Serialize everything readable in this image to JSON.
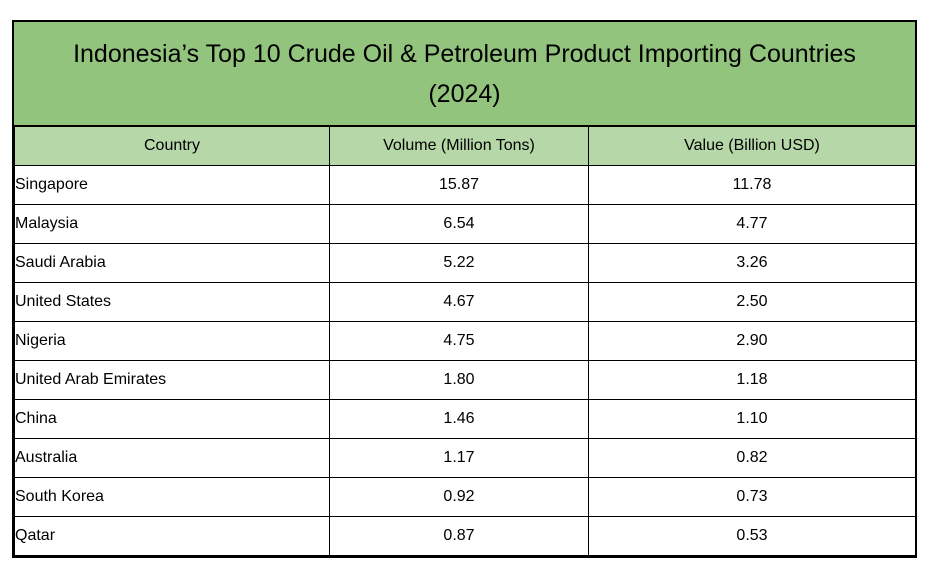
{
  "title": {
    "line1": "Indonesia’s Top 10 Crude Oil & Petroleum Product Importing Countries",
    "line2": "(2024)"
  },
  "colors": {
    "title_banner_bg": "#93C47D",
    "header_row_bg": "#B6D7A8",
    "border": "#000000",
    "text": "#000000",
    "page_bg": "#FFFFFF"
  },
  "table": {
    "headers": {
      "country": "Country",
      "volume": "Volume (Million Tons)",
      "value": "Value (Billion USD)"
    },
    "rows": [
      {
        "country": "Singapore",
        "volume": "15.87",
        "value": "11.78"
      },
      {
        "country": "Malaysia",
        "volume": "6.54",
        "value": "4.77"
      },
      {
        "country": "Saudi Arabia",
        "volume": "5.22",
        "value": "3.26"
      },
      {
        "country": "United States",
        "volume": "4.67",
        "value": "2.50"
      },
      {
        "country": "Nigeria",
        "volume": "4.75",
        "value": "2.90"
      },
      {
        "country": "United Arab Emirates",
        "volume": "1.80",
        "value": "1.18"
      },
      {
        "country": "China",
        "volume": "1.46",
        "value": "1.10"
      },
      {
        "country": "Australia",
        "volume": "1.17",
        "value": "0.82"
      },
      {
        "country": "South Korea",
        "volume": "0.92",
        "value": "0.73"
      },
      {
        "country": "Qatar",
        "volume": "0.87",
        "value": "0.53"
      }
    ]
  },
  "chart_data": {
    "type": "table",
    "title": "Indonesia’s Top 10 Crude Oil & Petroleum Product Importing Countries (2024)",
    "columns": [
      "Country",
      "Volume (Million Tons)",
      "Value (Billion USD)"
    ],
    "categories": [
      "Singapore",
      "Malaysia",
      "Saudi Arabia",
      "United States",
      "Nigeria",
      "United Arab Emirates",
      "China",
      "Australia",
      "South Korea",
      "Qatar"
    ],
    "series": [
      {
        "name": "Volume (Million Tons)",
        "values": [
          15.87,
          6.54,
          5.22,
          4.67,
          4.75,
          1.8,
          1.46,
          1.17,
          0.92,
          0.87
        ]
      },
      {
        "name": "Value (Billion USD)",
        "values": [
          11.78,
          4.77,
          3.26,
          2.5,
          2.9,
          1.18,
          1.1,
          0.82,
          0.73,
          0.53
        ]
      }
    ]
  }
}
